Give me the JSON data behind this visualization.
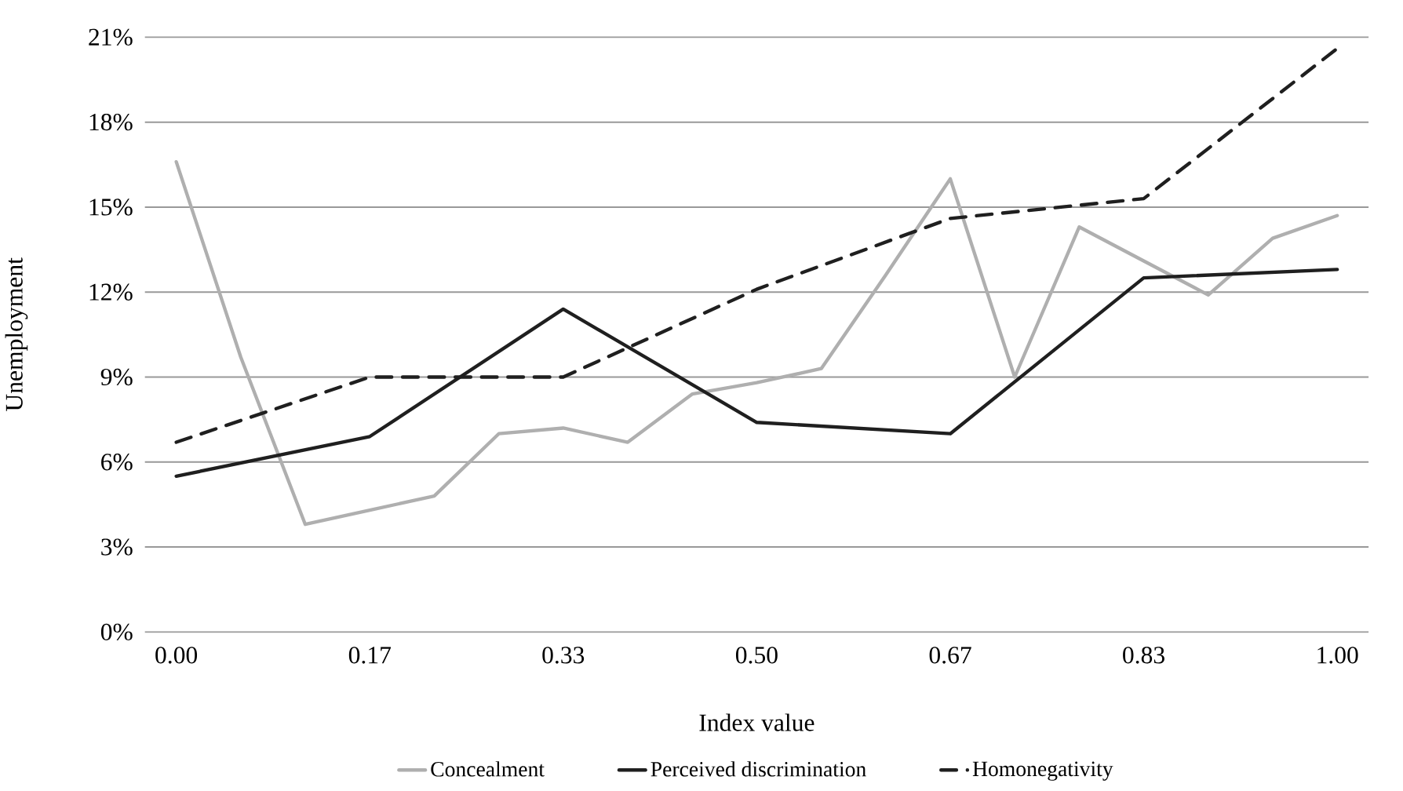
{
  "chart_data": {
    "type": "line",
    "xlabel": "Index value",
    "ylabel": "Unemployment",
    "xlim": [
      -0.027,
      1.027
    ],
    "xticks": [
      {
        "value": 0,
        "label": "0.00"
      },
      {
        "value": 0.1667,
        "label": "0.17"
      },
      {
        "value": 0.3333,
        "label": "0.33"
      },
      {
        "value": 0.5,
        "label": "0.50"
      },
      {
        "value": 0.6667,
        "label": "0.67"
      },
      {
        "value": 0.8333,
        "label": "0.83"
      },
      {
        "value": 1,
        "label": "1.00"
      }
    ],
    "ylim": [
      0,
      21
    ],
    "yticks": [
      {
        "value": 0,
        "label": "0%"
      },
      {
        "value": 3,
        "label": "3%"
      },
      {
        "value": 6,
        "label": "6%"
      },
      {
        "value": 9,
        "label": "9%"
      },
      {
        "value": 12,
        "label": "12%"
      },
      {
        "value": 15,
        "label": "15%"
      },
      {
        "value": 18,
        "label": "18%"
      },
      {
        "value": 21,
        "label": "21%"
      }
    ],
    "grid": "y",
    "legend": "bottom",
    "marker": "none",
    "series": [
      {
        "name": "Concealment",
        "color": "#afafaf",
        "line_style": "solid",
        "x": [
          0,
          0.0556,
          0.1111,
          0.1667,
          0.2222,
          0.2778,
          0.3333,
          0.3889,
          0.4444,
          0.5,
          0.5556,
          0.6111,
          0.6667,
          0.7222,
          0.7778,
          0.8333,
          0.8889,
          0.9444,
          1
        ],
        "values": [
          16.6,
          9.7,
          3.8,
          4.3,
          4.8,
          7.0,
          7.2,
          6.7,
          8.4,
          8.8,
          9.3,
          12.6,
          16.0,
          9.0,
          14.3,
          13.1,
          11.9,
          13.9,
          14.7
        ]
      },
      {
        "name": "Perceived discrimination",
        "color": "#1f1f1f",
        "line_style": "solid",
        "x": [
          0,
          0.1667,
          0.3333,
          0.5,
          0.6667,
          0.8333,
          1
        ],
        "values": [
          5.5,
          6.9,
          11.4,
          7.4,
          7.0,
          12.5,
          12.8
        ]
      },
      {
        "name": "Homonegativity",
        "color": "#1f1f1f",
        "line_style": "dashed",
        "x": [
          0,
          0.1667,
          0.3333,
          0.5,
          0.6667,
          0.8333,
          1
        ],
        "values": [
          6.7,
          9.0,
          9.0,
          12.1,
          14.6,
          15.3,
          20.6
        ]
      }
    ]
  }
}
